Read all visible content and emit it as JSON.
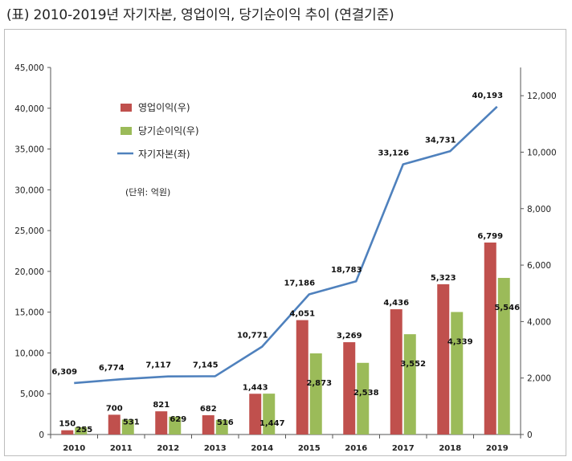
{
  "title": "(표) 2010-2019년 자기자본, 영업이익, 당기순이익 추이 (연결기준)",
  "chart_data": {
    "type": "bar+line",
    "categories": [
      "2010",
      "2011",
      "2012",
      "2013",
      "2014",
      "2015",
      "2016",
      "2017",
      "2018",
      "2019"
    ],
    "series": [
      {
        "name": "영업이익(우)",
        "kind": "bar",
        "axis": "right",
        "color": "#c0504d",
        "values": [
          150,
          700,
          821,
          682,
          1443,
          4051,
          3269,
          4436,
          5323,
          6799
        ],
        "labels": [
          "150",
          "700",
          "821",
          "682",
          "1,443",
          "4,051",
          "3,269",
          "4,436",
          "5,323",
          "6,799"
        ]
      },
      {
        "name": "당기순이익(우)",
        "kind": "bar",
        "axis": "right",
        "color": "#9bbb59",
        "values": [
          255,
          531,
          629,
          516,
          1447,
          2873,
          2538,
          3552,
          4339,
          5546
        ],
        "labels": [
          "255",
          "531",
          "629",
          "516",
          "1,447",
          "2,873",
          "2,538",
          "3,552",
          "4,339",
          "5,546"
        ]
      },
      {
        "name": "자기자본(좌)",
        "kind": "line",
        "axis": "left",
        "color": "#4f81bd",
        "values": [
          6309,
          6774,
          7117,
          7145,
          10771,
          17186,
          18783,
          33126,
          34731,
          40193
        ],
        "labels": [
          "6,309",
          "6,774",
          "7,117",
          "7,145",
          "10,771",
          "17,186",
          "18,783",
          "33,126",
          "34,731",
          "40,193"
        ]
      }
    ],
    "y_left": {
      "min": 0,
      "max": 45000,
      "ticks": [
        "0",
        "5,000",
        "10,000",
        "15,000",
        "20,000",
        "25,000",
        "30,000",
        "35,000",
        "40,000",
        "45,000"
      ]
    },
    "y_right": {
      "min": 0,
      "max": 13000,
      "ticks": [
        "0",
        "2,000",
        "4,000",
        "6,000",
        "8,000",
        "10,000",
        "12,000"
      ]
    },
    "unit_note": "(단위: 억원)",
    "legend_position": "top-left"
  }
}
